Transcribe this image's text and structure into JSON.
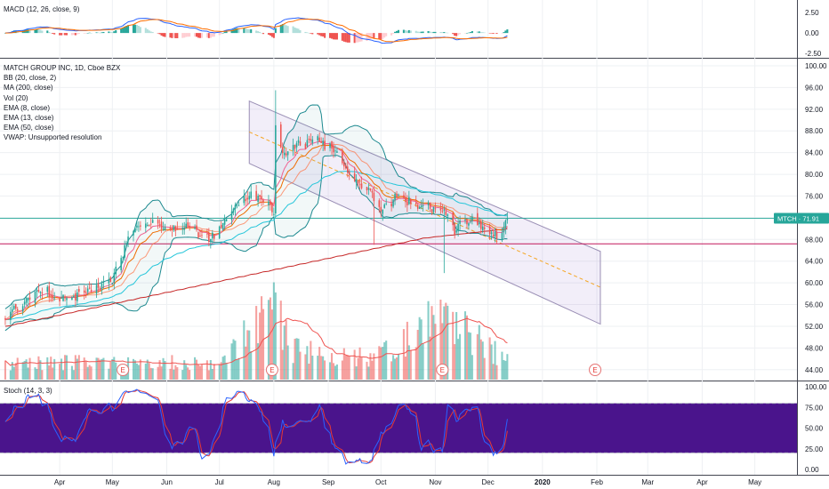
{
  "chart_data": [
    {
      "pane": "main",
      "type": "candlestick",
      "title": "MATCH GROUP INC, 1D, Cboe BZX",
      "indicators": [
        "BB (20, close, 2)",
        "MA (200, close)",
        "Vol (20)",
        "EMA (8, close)",
        "EMA (13, close)",
        "EMA (50, close)",
        "VWAP: Unsupported resolution"
      ],
      "ylim": [
        42,
        100
      ],
      "y_ticks": [
        "100.00",
        "96.00",
        "92.00",
        "88.00",
        "84.00",
        "80.00",
        "76.00",
        "72.00",
        "68.00",
        "64.00",
        "60.00",
        "56.00",
        "52.00",
        "48.00",
        "44.00"
      ],
      "price_label": "MTCH · 71.91",
      "last_price": 71.91,
      "support_line": 67.2,
      "channel": {
        "start_date": "2019-07-18",
        "end_date": "2020-02-03",
        "upper": [
          93.5,
          65.8
        ],
        "mid": [
          87.8,
          59.2
        ],
        "lower": [
          82.0,
          52.4
        ]
      },
      "anchors": [
        [
          "2019-03-01",
          53.5
        ],
        [
          "2019-03-20",
          58.5
        ],
        [
          "2019-04-05",
          56.8
        ],
        [
          "2019-04-20",
          59.0
        ],
        [
          "2019-05-01",
          60.5
        ],
        [
          "2019-05-10",
          68.0
        ],
        [
          "2019-05-20",
          71.5
        ],
        [
          "2019-06-01",
          69.5
        ],
        [
          "2019-06-15",
          70.5
        ],
        [
          "2019-06-25",
          67.5
        ],
        [
          "2019-07-05",
          72.0
        ],
        [
          "2019-07-18",
          76.5
        ],
        [
          "2019-07-29",
          75.2
        ],
        [
          "2019-08-01",
          72.5
        ],
        [
          "2019-08-02",
          88.0
        ],
        [
          "2019-08-06",
          84.0
        ],
        [
          "2019-08-15",
          85.5
        ],
        [
          "2019-08-25",
          86.5
        ],
        [
          "2019-09-05",
          84.0
        ],
        [
          "2019-09-15",
          79.0
        ],
        [
          "2019-09-25",
          77.0
        ],
        [
          "2019-10-01",
          73.0
        ],
        [
          "2019-10-10",
          76.5
        ],
        [
          "2019-10-20",
          74.5
        ],
        [
          "2019-10-30",
          73.5
        ],
        [
          "2019-11-06",
          73.0
        ],
        [
          "2019-11-12",
          69.5
        ],
        [
          "2019-11-20",
          71.5
        ],
        [
          "2019-11-30",
          70.0
        ],
        [
          "2019-12-06",
          68.5
        ],
        [
          "2019-12-12",
          71.9
        ]
      ],
      "volume_anchors": [
        [
          "2019-03-01",
          1.1
        ],
        [
          "2019-05-01",
          1.3
        ],
        [
          "2019-07-01",
          1.2
        ],
        [
          "2019-08-02",
          5.5
        ],
        [
          "2019-08-10",
          2.2
        ],
        [
          "2019-09-05",
          1.6
        ],
        [
          "2019-10-01",
          1.7
        ],
        [
          "2019-11-06",
          4.6
        ],
        [
          "2019-12-12",
          1.3
        ]
      ],
      "earnings_markers": [
        {
          "date": "2019-05-07",
          "label": "E"
        },
        {
          "date": "2019-07-31",
          "label": "E"
        },
        {
          "date": "2019-11-05",
          "label": "E"
        },
        {
          "date": "2020-01-31",
          "label": "E"
        }
      ]
    },
    {
      "pane": "macd",
      "type": "line",
      "title": "MACD (12, 26, close, 9)",
      "ylim": [
        -2.8,
        3.8
      ],
      "y_ticks": [
        "2.50",
        "0.00",
        "-2.50"
      ]
    },
    {
      "pane": "stoch",
      "type": "line",
      "title": "Stoch (14, 3, 3)",
      "ylim": [
        0,
        100
      ],
      "y_ticks": [
        "100.00",
        "75.00",
        "50.00",
        "25.00",
        "0.00"
      ],
      "upper_band": 80,
      "lower_band": 20
    }
  ],
  "x_axis": {
    "labels": [
      "Apr",
      "May",
      "Jun",
      "Jul",
      "Aug",
      "Sep",
      "Oct",
      "Nov",
      "Dec",
      "2020",
      "Feb",
      "Mar",
      "Apr",
      "May"
    ],
    "dates": [
      "2019-04-01",
      "2019-05-01",
      "2019-06-01",
      "2019-07-01",
      "2019-08-01",
      "2019-09-01",
      "2019-10-01",
      "2019-11-01",
      "2019-12-01",
      "2020-01-01",
      "2020-02-01",
      "2020-03-01",
      "2020-04-01",
      "2020-05-01"
    ]
  },
  "colors": {
    "up": "#26a69a",
    "down": "#ef5350",
    "bb": "#1e8a90",
    "ma200": "#c62828",
    "ema8": "#f06292",
    "ema13": "#ef6c00",
    "ema50": "#26c6da",
    "price_tag": "#26a69a",
    "support": "#c2185b",
    "channel_fill": "#9575cd",
    "stoch_k": "#2962ff",
    "stoch_d": "#e53935",
    "stoch_band": "#4a148c",
    "macd_line": "#2962ff",
    "macd_signal": "#ff6d00"
  }
}
